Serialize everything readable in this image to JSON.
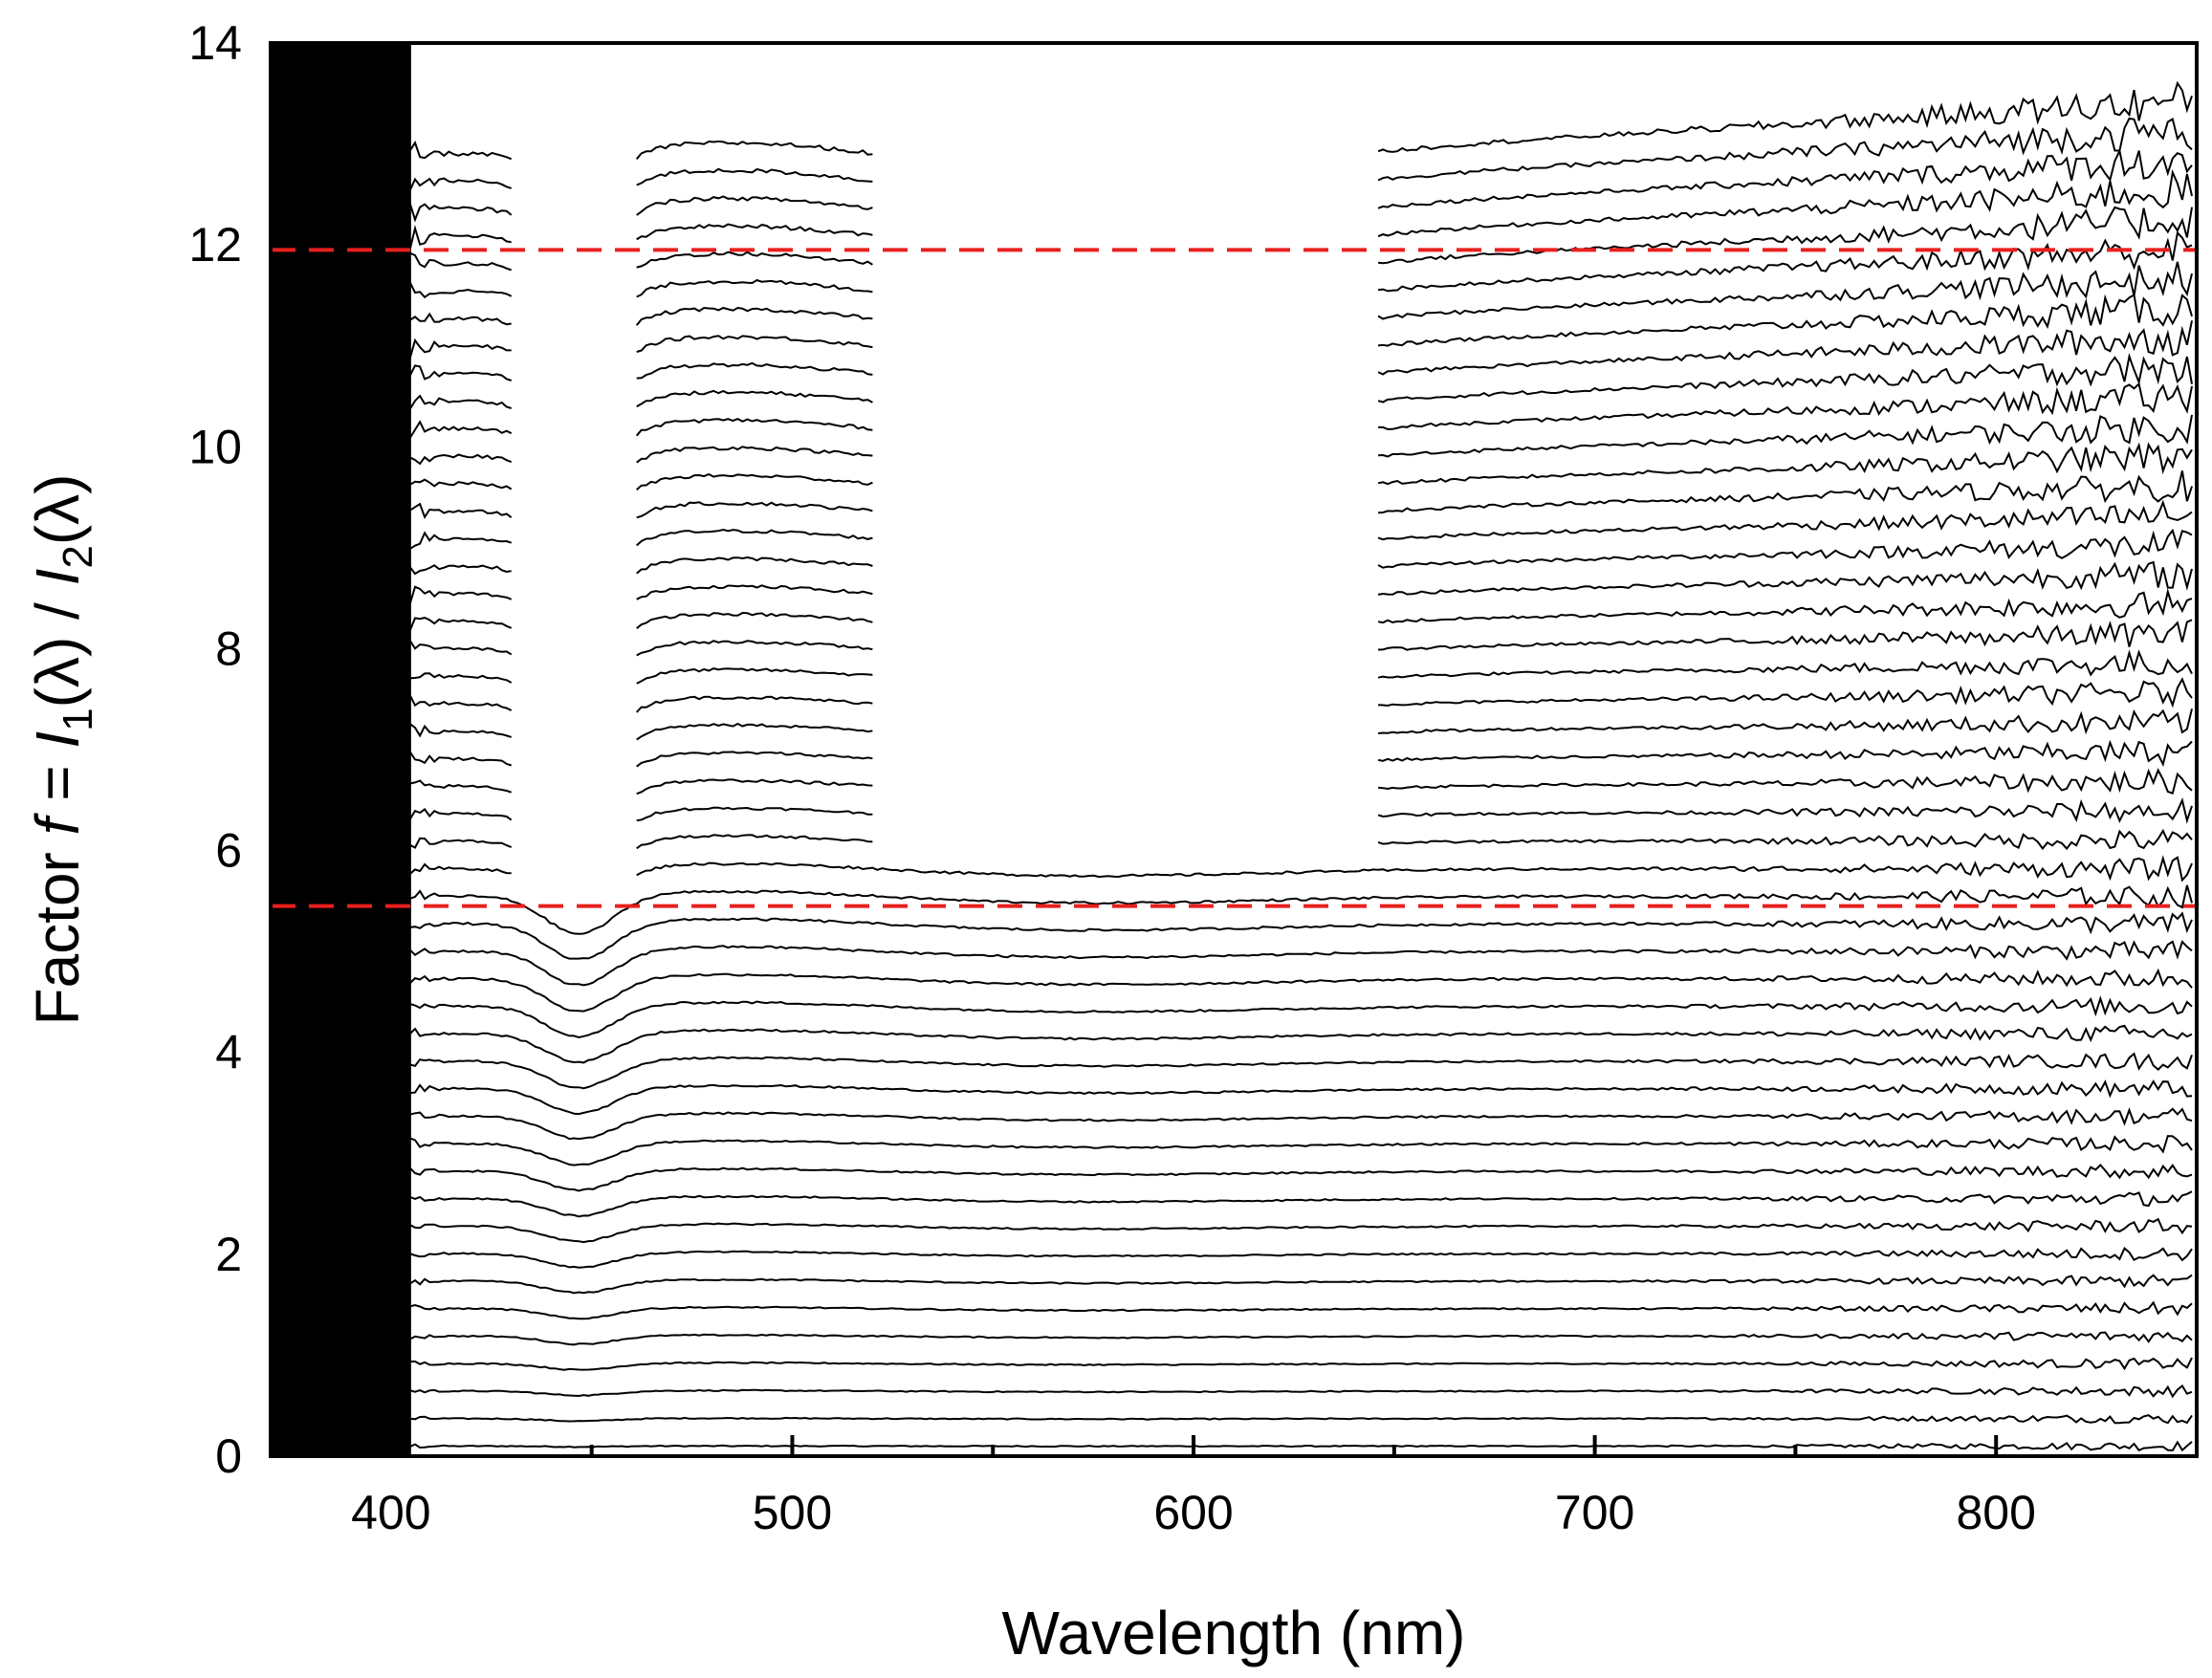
{
  "chart_data": {
    "type": "line",
    "title": "",
    "xlabel": "Wavelength (nm)",
    "ylabel": {
      "prefix": "Factor ",
      "var": "f",
      "eq": " = ",
      "num": "I",
      "num_sub": "1",
      "num_arg": "(λ) / ",
      "den": "I",
      "den_sub": "2",
      "den_arg": "(λ)"
    },
    "xlim": [
      370,
      850
    ],
    "ylim": [
      0,
      14
    ],
    "xticks": [
      400,
      500,
      600,
      700,
      800
    ],
    "xtick_labels": [
      "400",
      "500",
      "600",
      "700",
      "800"
    ],
    "xminor_ticks": [
      450,
      550,
      650,
      750
    ],
    "yticks": [
      0,
      2,
      4,
      6,
      8,
      10,
      12,
      14
    ],
    "ytick_labels": [
      "0",
      "2",
      "4",
      "6",
      "8",
      "10",
      "12",
      "14"
    ],
    "grid": false,
    "legend": "none",
    "series_description": "Family of about 48 spectral ratio curves, one per factor level, stacked from f≈0.1 to f≈12.9; each curve is clipped where the ratio exceeds the detectable range, leaving gaps near 440 nm and 520–640 nm for high factors.",
    "series_count": 48,
    "series_bottom_value": 0.1,
    "series_top_value": 12.9,
    "reference_lines": [
      {
        "name": "upper-threshold",
        "y": 11.95,
        "style": "dashed",
        "color": "#e8201c"
      },
      {
        "name": "lower-threshold",
        "y": 5.45,
        "style": "dashed",
        "color": "#e8201c"
      }
    ],
    "clip_gaps": [
      {
        "x": [
          430,
          460
        ],
        "from_level": 5.6
      },
      {
        "x": [
          520,
          645
        ],
        "from_level": 6.0
      }
    ],
    "colors": {
      "curves": "#000000",
      "reference": "#e8201c",
      "axes": "#000000"
    }
  }
}
